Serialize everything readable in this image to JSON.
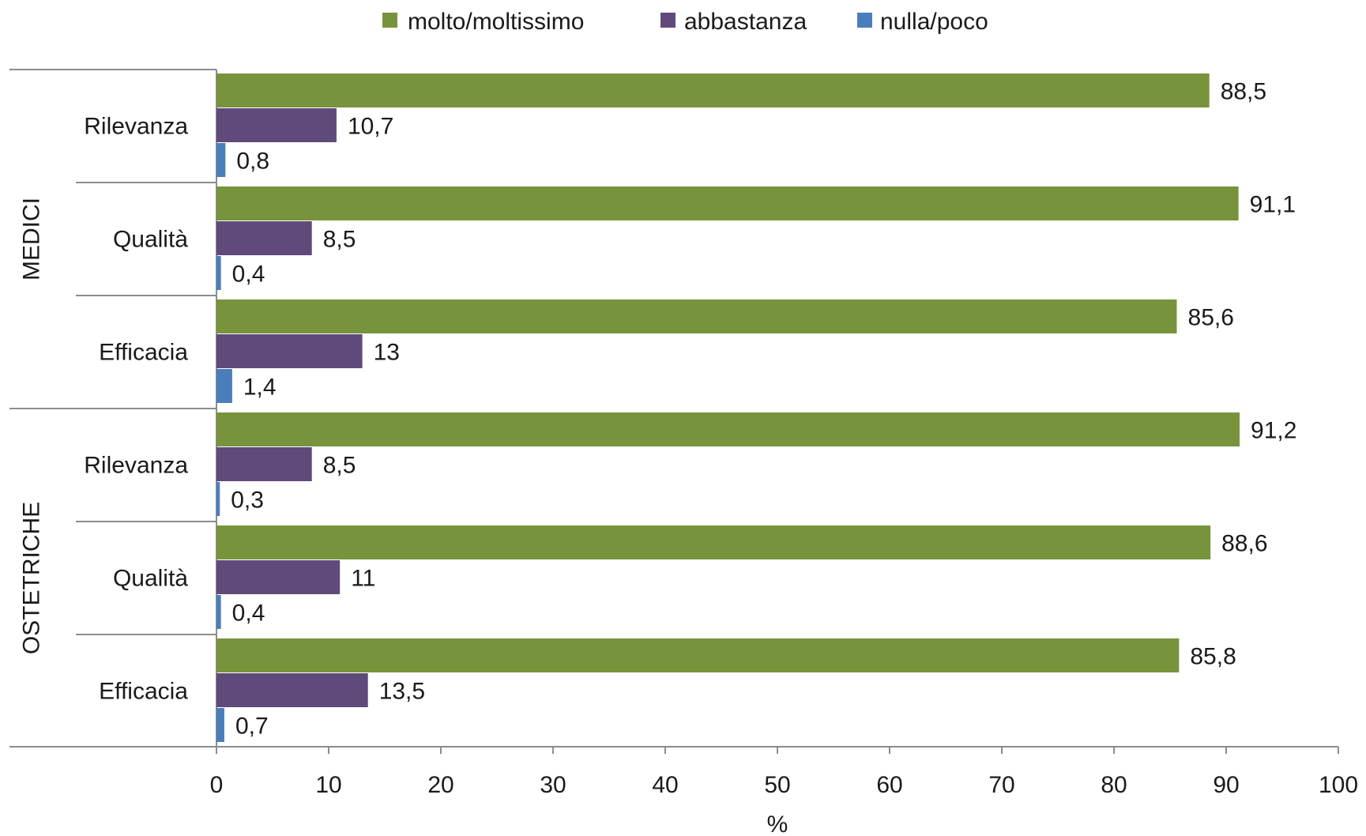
{
  "chart_data": {
    "type": "bar",
    "orientation": "horizontal",
    "legend": {
      "placement": "top-center",
      "entries": [
        {
          "name": "molto/moltissimo",
          "color": "#77933c"
        },
        {
          "name": "abbastanza",
          "color": "#604a7b"
        },
        {
          "name": "nulla/poco",
          "color": "#4a7ebb"
        }
      ]
    },
    "groups": [
      {
        "name": "MEDICI",
        "categories": [
          {
            "name": "Rilevanza",
            "values": [
              88.5,
              10.7,
              0.8
            ],
            "labels": [
              "88,5",
              "10,7",
              "0,8"
            ]
          },
          {
            "name": "Qualità",
            "values": [
              91.1,
              8.5,
              0.4
            ],
            "labels": [
              "91,1",
              "8,5",
              "0,4"
            ]
          },
          {
            "name": "Efficacia",
            "values": [
              85.6,
              13,
              1.4
            ],
            "labels": [
              "85,6",
              "13",
              "1,4"
            ]
          }
        ]
      },
      {
        "name": "OSTETRICHE",
        "categories": [
          {
            "name": "Rilevanza",
            "values": [
              91.2,
              8.5,
              0.3
            ],
            "labels": [
              "91,2",
              "8,5",
              "0,3"
            ]
          },
          {
            "name": "Qualità",
            "values": [
              88.6,
              11,
              0.4
            ],
            "labels": [
              "88,6",
              "11",
              "0,4"
            ]
          },
          {
            "name": "Efficacia",
            "values": [
              85.8,
              13.5,
              0.7
            ],
            "labels": [
              "85,8",
              "13,5",
              "0,7"
            ]
          }
        ]
      }
    ],
    "xaxis": {
      "label": "%",
      "range": [
        0,
        100
      ],
      "ticks": [
        0,
        10,
        20,
        30,
        40,
        50,
        60,
        70,
        80,
        90,
        100
      ]
    },
    "grid": false
  }
}
